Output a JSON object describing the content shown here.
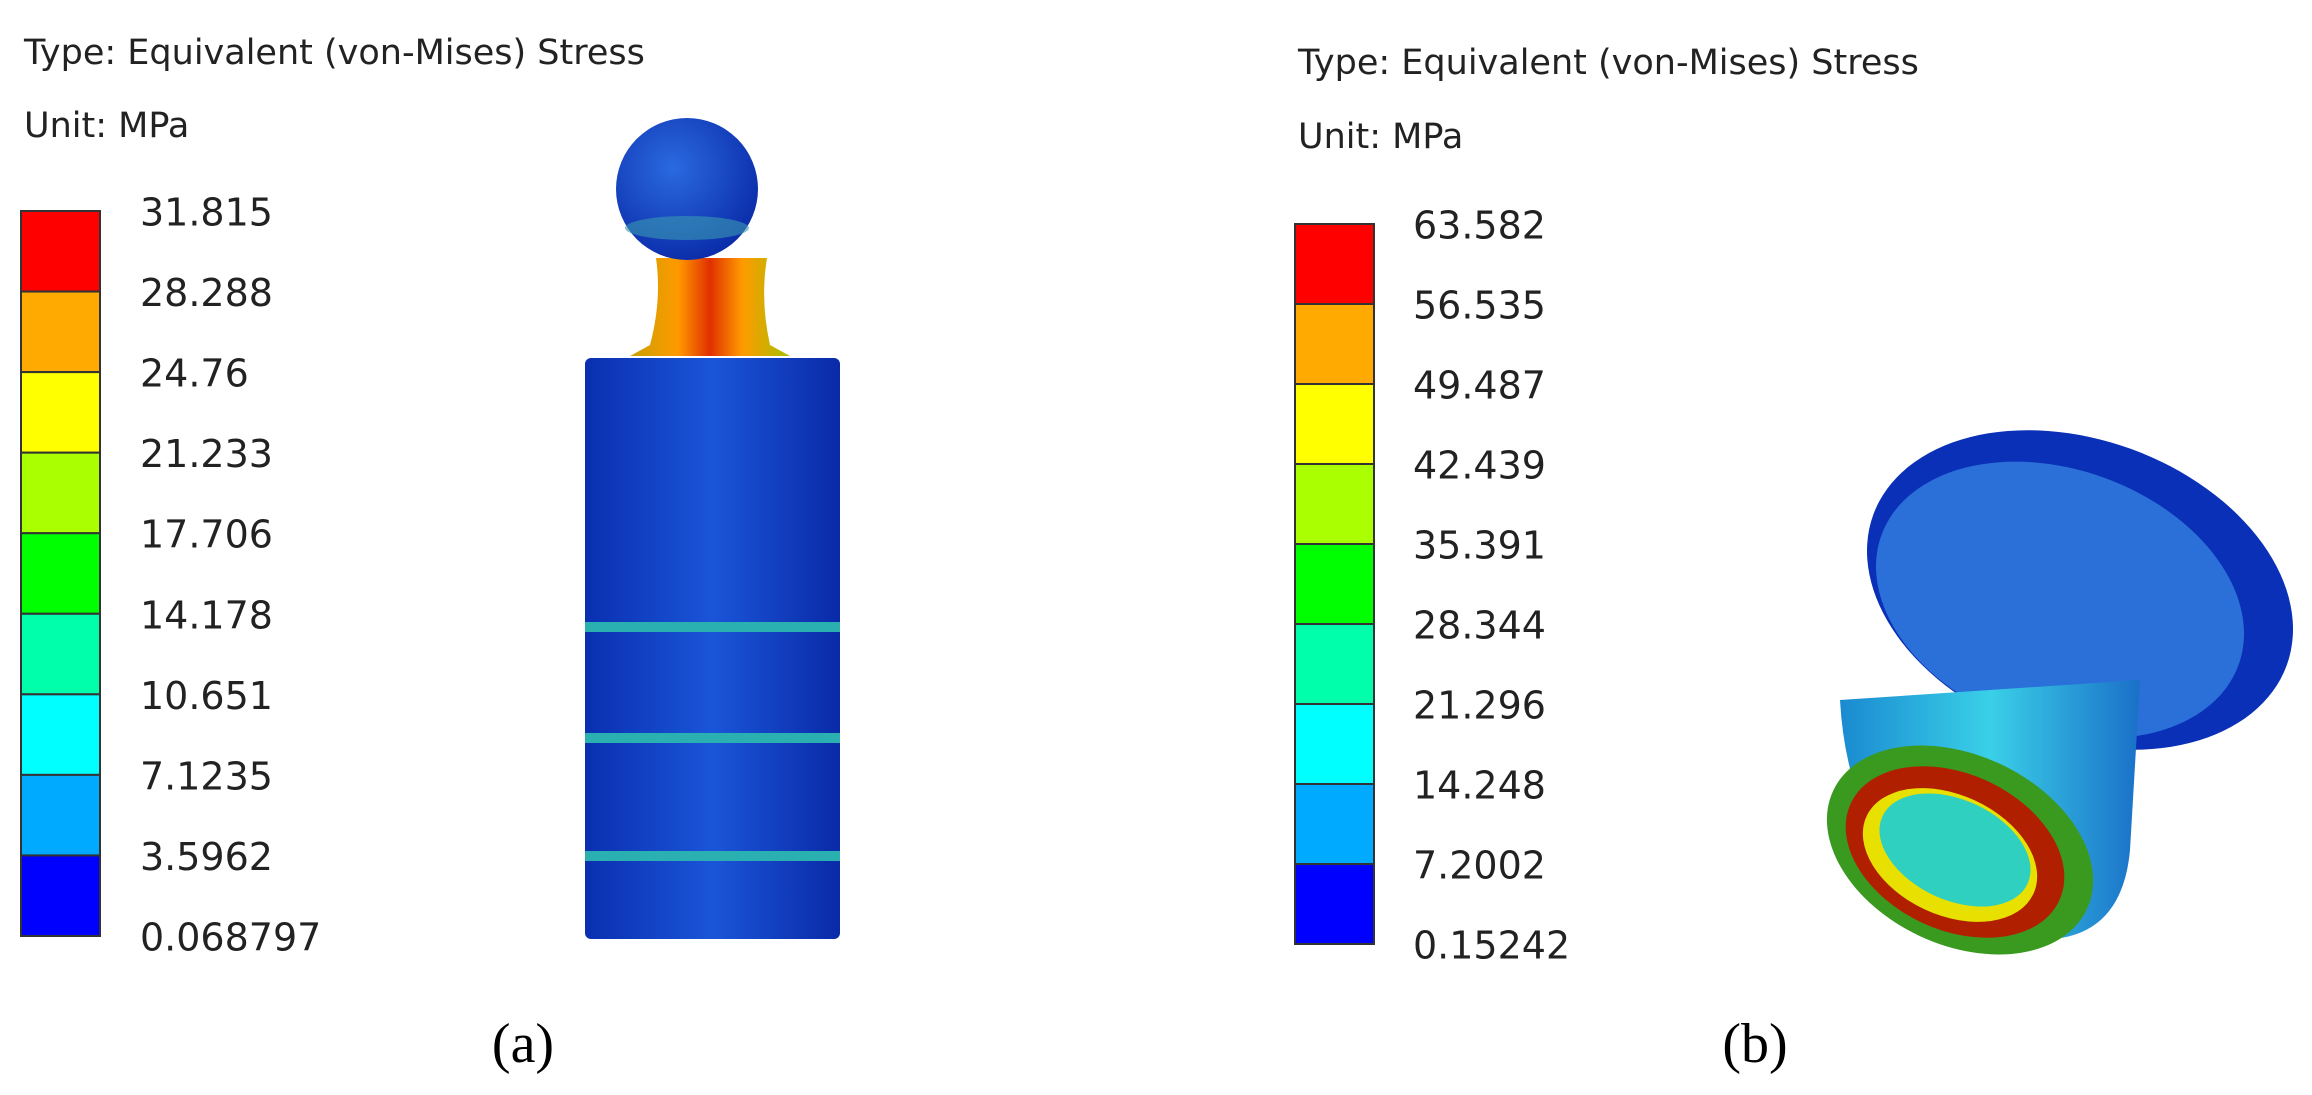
{
  "panels": [
    {
      "type_label": "Type: Equivalent (von-Mises) Stress",
      "unit_label": "Unit: MPa",
      "legend": [
        "31.815",
        "28.288",
        "24.76",
        "21.233",
        "17.706",
        "14.178",
        "10.651",
        "7.1235",
        "3.5962",
        "0.068797"
      ],
      "caption": "(a)"
    },
    {
      "type_label": "Type: Equivalent (von-Mises) Stress",
      "unit_label": "Unit: MPa",
      "legend": [
        "63.582",
        "56.535",
        "49.487",
        "42.439",
        "35.391",
        "28.344",
        "21.296",
        "14.248",
        "7.2002",
        "0.15242"
      ],
      "caption": "(b)"
    }
  ]
}
